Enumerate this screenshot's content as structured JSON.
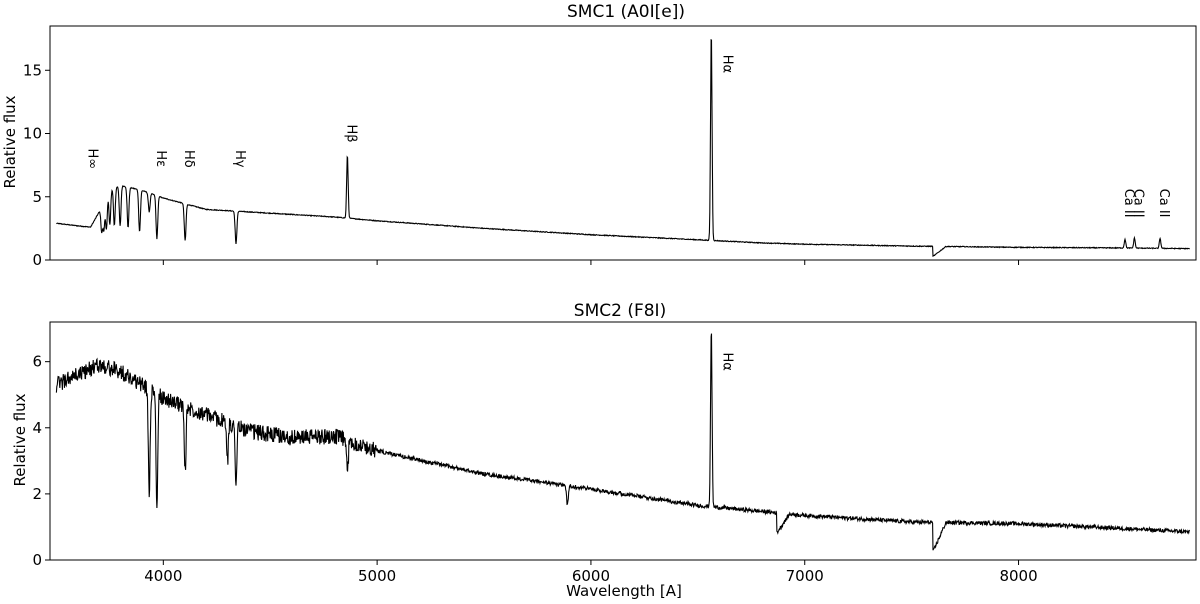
{
  "chart_data": [
    {
      "type": "line",
      "title": "SMC1 (A0I[e])",
      "xlabel": "",
      "ylabel": "Relative flux",
      "xlim": [
        3470,
        8830
      ],
      "ylim": [
        0,
        18.5
      ],
      "xticks": [
        4000,
        5000,
        6000,
        7000,
        8000
      ],
      "xtick_labels": [
        "",
        "",
        "",
        "",
        ""
      ],
      "yticks": [
        0,
        5,
        10,
        15
      ],
      "ytick_labels": [
        "0",
        "5",
        "10",
        "15"
      ],
      "grid": false,
      "continuum": {
        "x": [
          3500,
          3600,
          3660,
          3700,
          3750,
          3800,
          3900,
          4000,
          4200,
          4500,
          4800,
          5000,
          5500,
          6000,
          6500,
          6800,
          7000,
          7500,
          8000,
          8500,
          8800
        ],
        "y": [
          2.9,
          2.7,
          2.6,
          3.8,
          5.6,
          5.9,
          5.5,
          4.9,
          4.0,
          3.7,
          3.4,
          3.1,
          2.5,
          2.0,
          1.6,
          1.35,
          1.25,
          1.1,
          1.0,
          0.95,
          0.9
        ]
      },
      "features": [
        {
          "x": 3712,
          "depth": 2.0,
          "type": "abs"
        },
        {
          "x": 3722,
          "depth": 2.2,
          "type": "abs"
        },
        {
          "x": 3734,
          "depth": 2.6,
          "type": "abs"
        },
        {
          "x": 3750,
          "depth": 2.8,
          "type": "abs"
        },
        {
          "x": 3771,
          "depth": 3.0,
          "type": "abs"
        },
        {
          "x": 3798,
          "depth": 3.2,
          "type": "abs"
        },
        {
          "x": 3835,
          "depth": 3.2,
          "type": "abs"
        },
        {
          "x": 3889,
          "depth": 3.3,
          "type": "abs"
        },
        {
          "x": 3934,
          "depth": 1.5,
          "type": "abs"
        },
        {
          "x": 3970,
          "depth": 3.4,
          "type": "abs"
        },
        {
          "x": 4102,
          "depth": 2.9,
          "type": "abs"
        },
        {
          "x": 4340,
          "depth": 2.6,
          "type": "abs"
        },
        {
          "x": 4861,
          "height": 5.0,
          "type": "em"
        },
        {
          "x": 6563,
          "height": 16.5,
          "type": "em"
        },
        {
          "x": 7600,
          "depth": 0.8,
          "type": "band"
        },
        {
          "x": 8498,
          "height": 0.7,
          "type": "em"
        },
        {
          "x": 8542,
          "height": 0.8,
          "type": "em"
        },
        {
          "x": 8662,
          "height": 0.8,
          "type": "em"
        }
      ],
      "annotations": [
        {
          "text": "H∞",
          "x": 3650,
          "y": 8.0
        },
        {
          "text": "Hε",
          "x": 3970,
          "y": 8.0
        },
        {
          "text": "Hδ",
          "x": 4102,
          "y": 8.0
        },
        {
          "text": "Hγ",
          "x": 4340,
          "y": 8.0
        },
        {
          "text": "Hβ",
          "x": 4861,
          "y": 10.0
        },
        {
          "text": "Hα",
          "x": 6620,
          "y": 15.5
        },
        {
          "text": "Ca II",
          "x": 8498,
          "y": 4.5
        },
        {
          "text": "Ca II",
          "x": 8542,
          "y": 4.5
        },
        {
          "text": "Ca II",
          "x": 8662,
          "y": 4.5
        }
      ]
    },
    {
      "type": "line",
      "title": "SMC2 (F8I)",
      "xlabel": "Wavelength [A]",
      "ylabel": "Relative flux",
      "xlim": [
        3470,
        8830
      ],
      "ylim": [
        0,
        7.2
      ],
      "xticks": [
        4000,
        5000,
        6000,
        7000,
        8000
      ],
      "xtick_labels": [
        "4000",
        "5000",
        "6000",
        "7000",
        "8000"
      ],
      "yticks": [
        0,
        2,
        4,
        6
      ],
      "ytick_labels": [
        "0",
        "2",
        "4",
        "6"
      ],
      "grid": false,
      "continuum": {
        "x": [
          3500,
          3600,
          3700,
          3800,
          3900,
          4000,
          4200,
          4400,
          4600,
          4800,
          5000,
          5500,
          6000,
          6500,
          7000,
          7500,
          8000,
          8500,
          8800
        ],
        "y": [
          5.3,
          5.6,
          5.9,
          5.7,
          5.3,
          4.9,
          4.4,
          3.9,
          3.7,
          3.75,
          3.3,
          2.6,
          2.15,
          1.65,
          1.35,
          1.15,
          1.1,
          0.95,
          0.85
        ]
      },
      "features": [
        {
          "x": 3934,
          "depth": 3.2,
          "type": "abs"
        },
        {
          "x": 3970,
          "depth": 3.5,
          "type": "abs"
        },
        {
          "x": 4102,
          "depth": 2.0,
          "type": "abs"
        },
        {
          "x": 4300,
          "depth": 1.2,
          "type": "abs"
        },
        {
          "x": 4340,
          "depth": 1.6,
          "type": "abs"
        },
        {
          "x": 4861,
          "depth": 1.0,
          "type": "abs"
        },
        {
          "x": 5890,
          "depth": 0.6,
          "type": "abs"
        },
        {
          "x": 6563,
          "height": 5.4,
          "type": "em"
        },
        {
          "x": 6870,
          "depth": 0.6,
          "type": "band"
        },
        {
          "x": 7600,
          "depth": 0.9,
          "type": "band"
        }
      ],
      "annotations": [
        {
          "text": "Hα",
          "x": 6620,
          "y": 6.0
        }
      ]
    }
  ]
}
